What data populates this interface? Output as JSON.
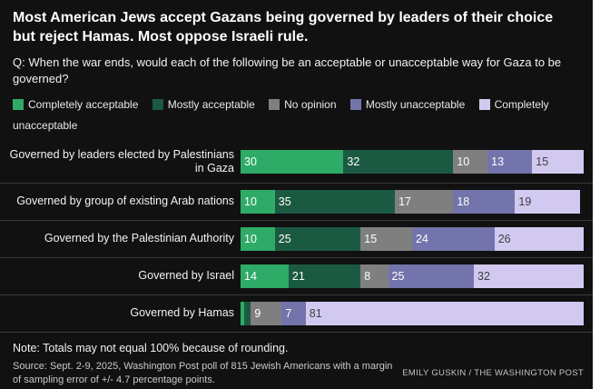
{
  "colors": {
    "panel_background": "#111111",
    "title_text": "#ffffff",
    "body_text": "#ececec",
    "separator": "#3a3a3a",
    "value_label_on_dark": "#ffffff",
    "value_label_on_light": "#3f3f3f"
  },
  "chart_data": {
    "type": "bar",
    "stacked": true,
    "orientation": "horizontal",
    "title": "Most American Jews accept Gazans being governed by leaders of their choice but reject Hamas. Most oppose Israeli rule.",
    "subtitle": "Q: When the war ends, would each of the following be an acceptable or unacceptable way for Gaza to be governed?",
    "categories": [
      "Governed by leaders elected by Palestinians in Gaza",
      "Governed by group of existing Arab nations",
      "Governed by the Palestinian Authority",
      "Governed by Israel",
      "Governed by Hamas"
    ],
    "series": [
      {
        "name": "Completely acceptable",
        "color": "#2eab67",
        "values": [
          30,
          10,
          10,
          14,
          1
        ]
      },
      {
        "name": "Mostly acceptable",
        "color": "#1b5a42",
        "values": [
          32,
          35,
          25,
          21,
          2
        ]
      },
      {
        "name": "No opinion",
        "color": "#7f7f7f",
        "values": [
          10,
          17,
          15,
          8,
          9
        ]
      },
      {
        "name": "Mostly unacceptable",
        "color": "#7374ab",
        "values": [
          13,
          18,
          24,
          25,
          7
        ]
      },
      {
        "name": "Completely unacceptable",
        "color": "#d2c9f1",
        "values": [
          15,
          19,
          26,
          32,
          81
        ]
      }
    ],
    "xlim": [
      0,
      100
    ],
    "grid": false,
    "legend_position": "top",
    "value_label_threshold": 7,
    "note": "Note: Totals may not equal 100% because of rounding.",
    "source": "Source: Sept. 2-9, 2025, Washington Post poll of 815 Jewish Americans with a margin of sampling error of +/- 4.7 percentage points.",
    "credit": "EMILY GUSKIN / THE WASHINGTON POST"
  }
}
